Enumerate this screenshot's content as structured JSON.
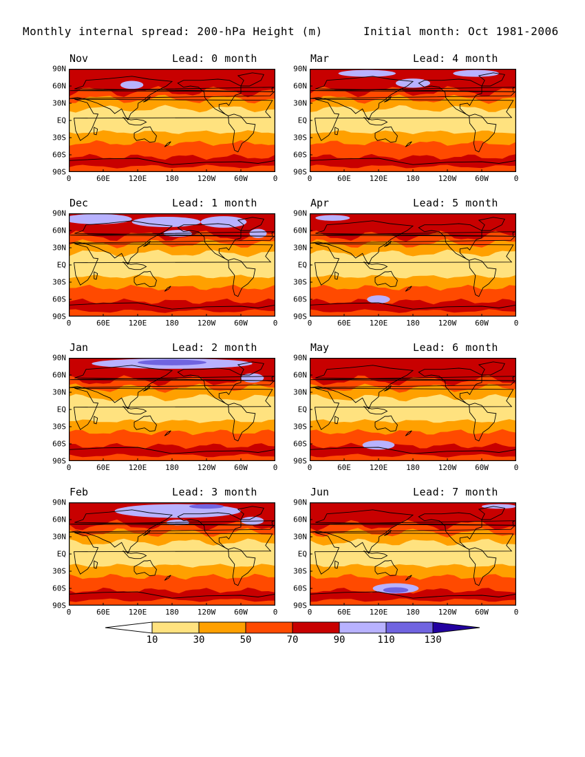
{
  "title": "Monthly internal spread: 200-hPa Height (m)",
  "subtitle": "Initial month: Oct 1981-2006",
  "panels": [
    {
      "month": "Nov",
      "lead": "Lead: 0 month"
    },
    {
      "month": "Mar",
      "lead": "Lead: 4 month"
    },
    {
      "month": "Dec",
      "lead": "Lead: 1 month"
    },
    {
      "month": "Apr",
      "lead": "Lead: 5 month"
    },
    {
      "month": "Jan",
      "lead": "Lead: 2 month"
    },
    {
      "month": "May",
      "lead": "Lead: 6 month"
    },
    {
      "month": "Feb",
      "lead": "Lead: 3 month"
    },
    {
      "month": "Jun",
      "lead": "Lead: 7 month"
    }
  ],
  "x_ticks": [
    "0",
    "60E",
    "120E",
    "180",
    "120W",
    "60W",
    "0"
  ],
  "x_ticks_jun": [
    "0",
    "60E",
    "120E",
    "180",
    "120W",
    "60W",
    "0"
  ],
  "x_ticks_feb": [
    "0",
    "60E",
    "120E",
    "180",
    "120W",
    "60W",
    "0"
  ],
  "y_ticks": [
    "90N",
    "60N",
    "30N",
    "EQ",
    "30S",
    "60S",
    "90S"
  ],
  "colorbar": {
    "labels": [
      "10",
      "30",
      "50",
      "70",
      "90",
      "110",
      "130"
    ],
    "colors": [
      "#ffffff",
      "#ffe27f",
      "#ffa000",
      "#ff4a00",
      "#c80000",
      "#b8b2ff",
      "#7064e0",
      "#2200a0"
    ]
  },
  "colors": {
    "c10_30": "#ffe27f",
    "c30_50": "#ffa000",
    "c50_70": "#ff4a00",
    "c70_90": "#c80000",
    "c90_110": "#b8b2ff",
    "c110_130": "#7064e0",
    "land_outline": "#000000"
  },
  "bottom_row_tick_labels": {
    "feb": [
      "0",
      "60E",
      "120E",
      "180",
      "120W",
      "60W",
      "0"
    ],
    "jun": [
      "0",
      "60E",
      "120E",
      "180",
      "120W",
      "60W",
      "0"
    ]
  }
}
